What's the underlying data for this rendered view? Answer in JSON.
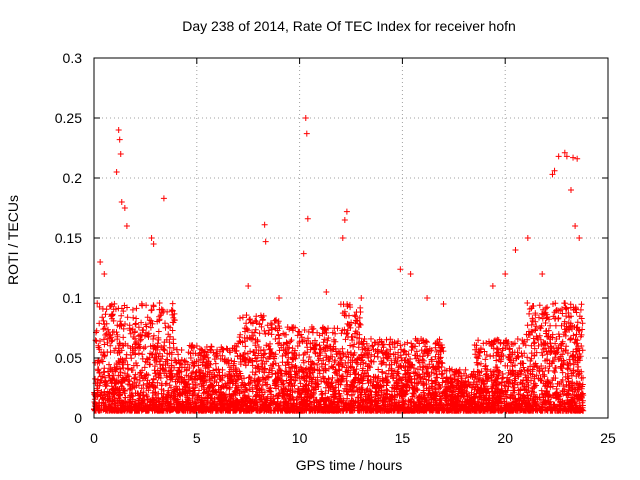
{
  "chart_data": {
    "type": "scatter",
    "title": "Day 238 of 2014, Rate Of TEC Index for receiver hofn",
    "xlabel": "GPS time / hours",
    "ylabel": "ROTI / TECUs",
    "xlim": [
      0,
      25
    ],
    "ylim": [
      0,
      0.3
    ],
    "x_ticks": [
      0,
      5,
      10,
      15,
      20,
      25
    ],
    "x_tick_labels": [
      "0",
      "5",
      "10",
      "15",
      "20",
      "25"
    ],
    "y_ticks": [
      0,
      0.05,
      0.1,
      0.15,
      0.2,
      0.25,
      0.3
    ],
    "y_tick_labels": [
      "0",
      "0.05",
      "0.1",
      "0.15",
      "0.2",
      "0.25",
      "0.3"
    ],
    "grid": true,
    "marker": "+",
    "marker_color": "#ff0000",
    "series": [
      {
        "name": "ROTI",
        "description": "dense cloud of ROTI samples from 0 to ~23.8 h, mostly below 0.06 TECU/s with peaks",
        "x": [
          1.2,
          1.25,
          1.3,
          1.1,
          1.35,
          1.5,
          1.6,
          3.4,
          2.8,
          2.9,
          8.3,
          8.35,
          10.3,
          10.35,
          10.4,
          10.2,
          12.3,
          12.2,
          12.1,
          14.9,
          15.4,
          16.2,
          20.0,
          21.1,
          22.3,
          22.4,
          22.6,
          22.9,
          23.0,
          23.3,
          23.5,
          23.2,
          23.4,
          23.7,
          0.3,
          0.5,
          7.5,
          9.0,
          11.3,
          13.0,
          17.0,
          19.4,
          20.5,
          21.8,
          23.6
        ],
        "y": [
          0.24,
          0.232,
          0.22,
          0.205,
          0.18,
          0.175,
          0.16,
          0.183,
          0.15,
          0.145,
          0.161,
          0.147,
          0.25,
          0.237,
          0.166,
          0.137,
          0.172,
          0.165,
          0.15,
          0.124,
          0.12,
          0.1,
          0.12,
          0.15,
          0.203,
          0.206,
          0.218,
          0.221,
          0.218,
          0.217,
          0.216,
          0.19,
          0.16,
          0.06,
          0.13,
          0.12,
          0.11,
          0.1,
          0.105,
          0.1,
          0.095,
          0.11,
          0.14,
          0.12,
          0.15
        ]
      }
    ]
  }
}
